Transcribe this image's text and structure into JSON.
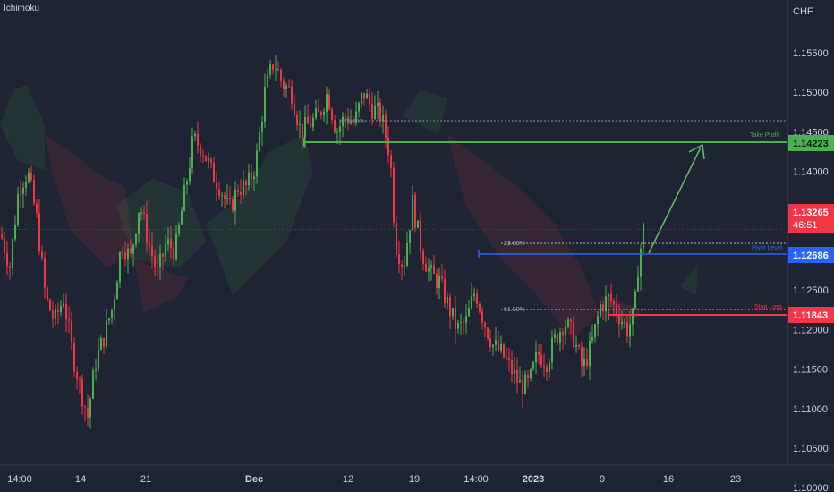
{
  "indicator": "Ichimoku",
  "currency": "CHF",
  "y_axis_ticks": [
    "1.15500",
    "1.15000",
    "1.14500",
    "1.14000",
    "1.13500",
    "1.12500",
    "1.12000",
    "1.11500",
    "1.11000",
    "1.10500",
    "1.10000"
  ],
  "x_axis_ticks": [
    "14:00",
    "14",
    "21",
    "Dec",
    "12",
    "19",
    "14:00",
    "2023",
    "9",
    "16",
    "23"
  ],
  "price_tags": {
    "take_profit": {
      "value": "1.14223",
      "label": "Take Profit",
      "color": "#4caf50"
    },
    "current": {
      "value": "1.13265",
      "countdown": "46:51",
      "color": "#f23645"
    },
    "pivot": {
      "value": "1.12686",
      "label": "Pivot Level",
      "color": "#2962ff"
    },
    "stop_loss": {
      "value": "1.11843",
      "label": "Stop Loss",
      "color": "#f23645"
    }
  },
  "fib_labels": [
    "78.60%",
    "23.60%",
    "61.80%"
  ],
  "colors": {
    "background": "#1e2434",
    "bull": "#4caf50",
    "bear": "#f23645",
    "pivot": "#2962ff"
  },
  "chart_data": {
    "type": "candlestick",
    "symbol_quote": "CHF",
    "ylim": [
      1.097,
      1.159
    ],
    "levels": {
      "take_profit": 1.14223,
      "current": 1.13265,
      "pivot": 1.12686,
      "stop_loss": 1.11843,
      "fib_78_6": 1.1455,
      "fib_23_6": 1.1282,
      "fib_61_8": 1.1189
    },
    "price_path": [
      [
        0,
        1.132
      ],
      [
        10,
        1.128
      ],
      [
        20,
        1.138
      ],
      [
        30,
        1.14
      ],
      [
        40,
        1.134
      ],
      [
        50,
        1.124
      ],
      [
        60,
        1.121
      ],
      [
        70,
        1.124
      ],
      [
        80,
        1.117
      ],
      [
        88,
        1.113
      ],
      [
        97,
        1.109
      ],
      [
        106,
        1.116
      ],
      [
        115,
        1.119
      ],
      [
        125,
        1.123
      ],
      [
        135,
        1.131
      ],
      [
        145,
        1.129
      ],
      [
        155,
        1.136
      ],
      [
        165,
        1.131
      ],
      [
        175,
        1.127
      ],
      [
        185,
        1.131
      ],
      [
        195,
        1.13
      ],
      [
        205,
        1.137
      ],
      [
        215,
        1.144
      ],
      [
        225,
        1.143
      ],
      [
        235,
        1.14
      ],
      [
        245,
        1.138
      ],
      [
        255,
        1.135
      ],
      [
        265,
        1.138
      ],
      [
        275,
        1.138
      ],
      [
        285,
        1.141
      ],
      [
        295,
        1.15
      ],
      [
        305,
        1.154
      ],
      [
        315,
        1.151
      ],
      [
        325,
        1.15
      ],
      [
        335,
        1.145
      ],
      [
        345,
        1.146
      ],
      [
        355,
        1.147
      ],
      [
        365,
        1.15
      ],
      [
        375,
        1.145
      ],
      [
        385,
        1.147
      ],
      [
        395,
        1.146
      ],
      [
        405,
        1.15
      ],
      [
        415,
        1.148
      ],
      [
        425,
        1.147
      ],
      [
        435,
        1.142
      ],
      [
        441,
        1.131
      ],
      [
        450,
        1.128
      ],
      [
        460,
        1.136
      ],
      [
        470,
        1.13
      ],
      [
        480,
        1.127
      ],
      [
        490,
        1.126
      ],
      [
        500,
        1.123
      ],
      [
        510,
        1.12
      ],
      [
        520,
        1.121
      ],
      [
        530,
        1.125
      ],
      [
        540,
        1.121
      ],
      [
        550,
        1.118
      ],
      [
        560,
        1.117
      ],
      [
        570,
        1.115
      ],
      [
        580,
        1.113
      ],
      [
        590,
        1.113
      ],
      [
        600,
        1.117
      ],
      [
        610,
        1.116
      ],
      [
        620,
        1.119
      ],
      [
        630,
        1.121
      ],
      [
        640,
        1.119
      ],
      [
        650,
        1.115
      ],
      [
        660,
        1.118
      ],
      [
        670,
        1.123
      ],
      [
        680,
        1.124
      ],
      [
        690,
        1.122
      ],
      [
        700,
        1.12
      ],
      [
        708,
        1.122
      ],
      [
        712,
        1.128
      ],
      [
        718,
        1.1327
      ]
    ]
  }
}
